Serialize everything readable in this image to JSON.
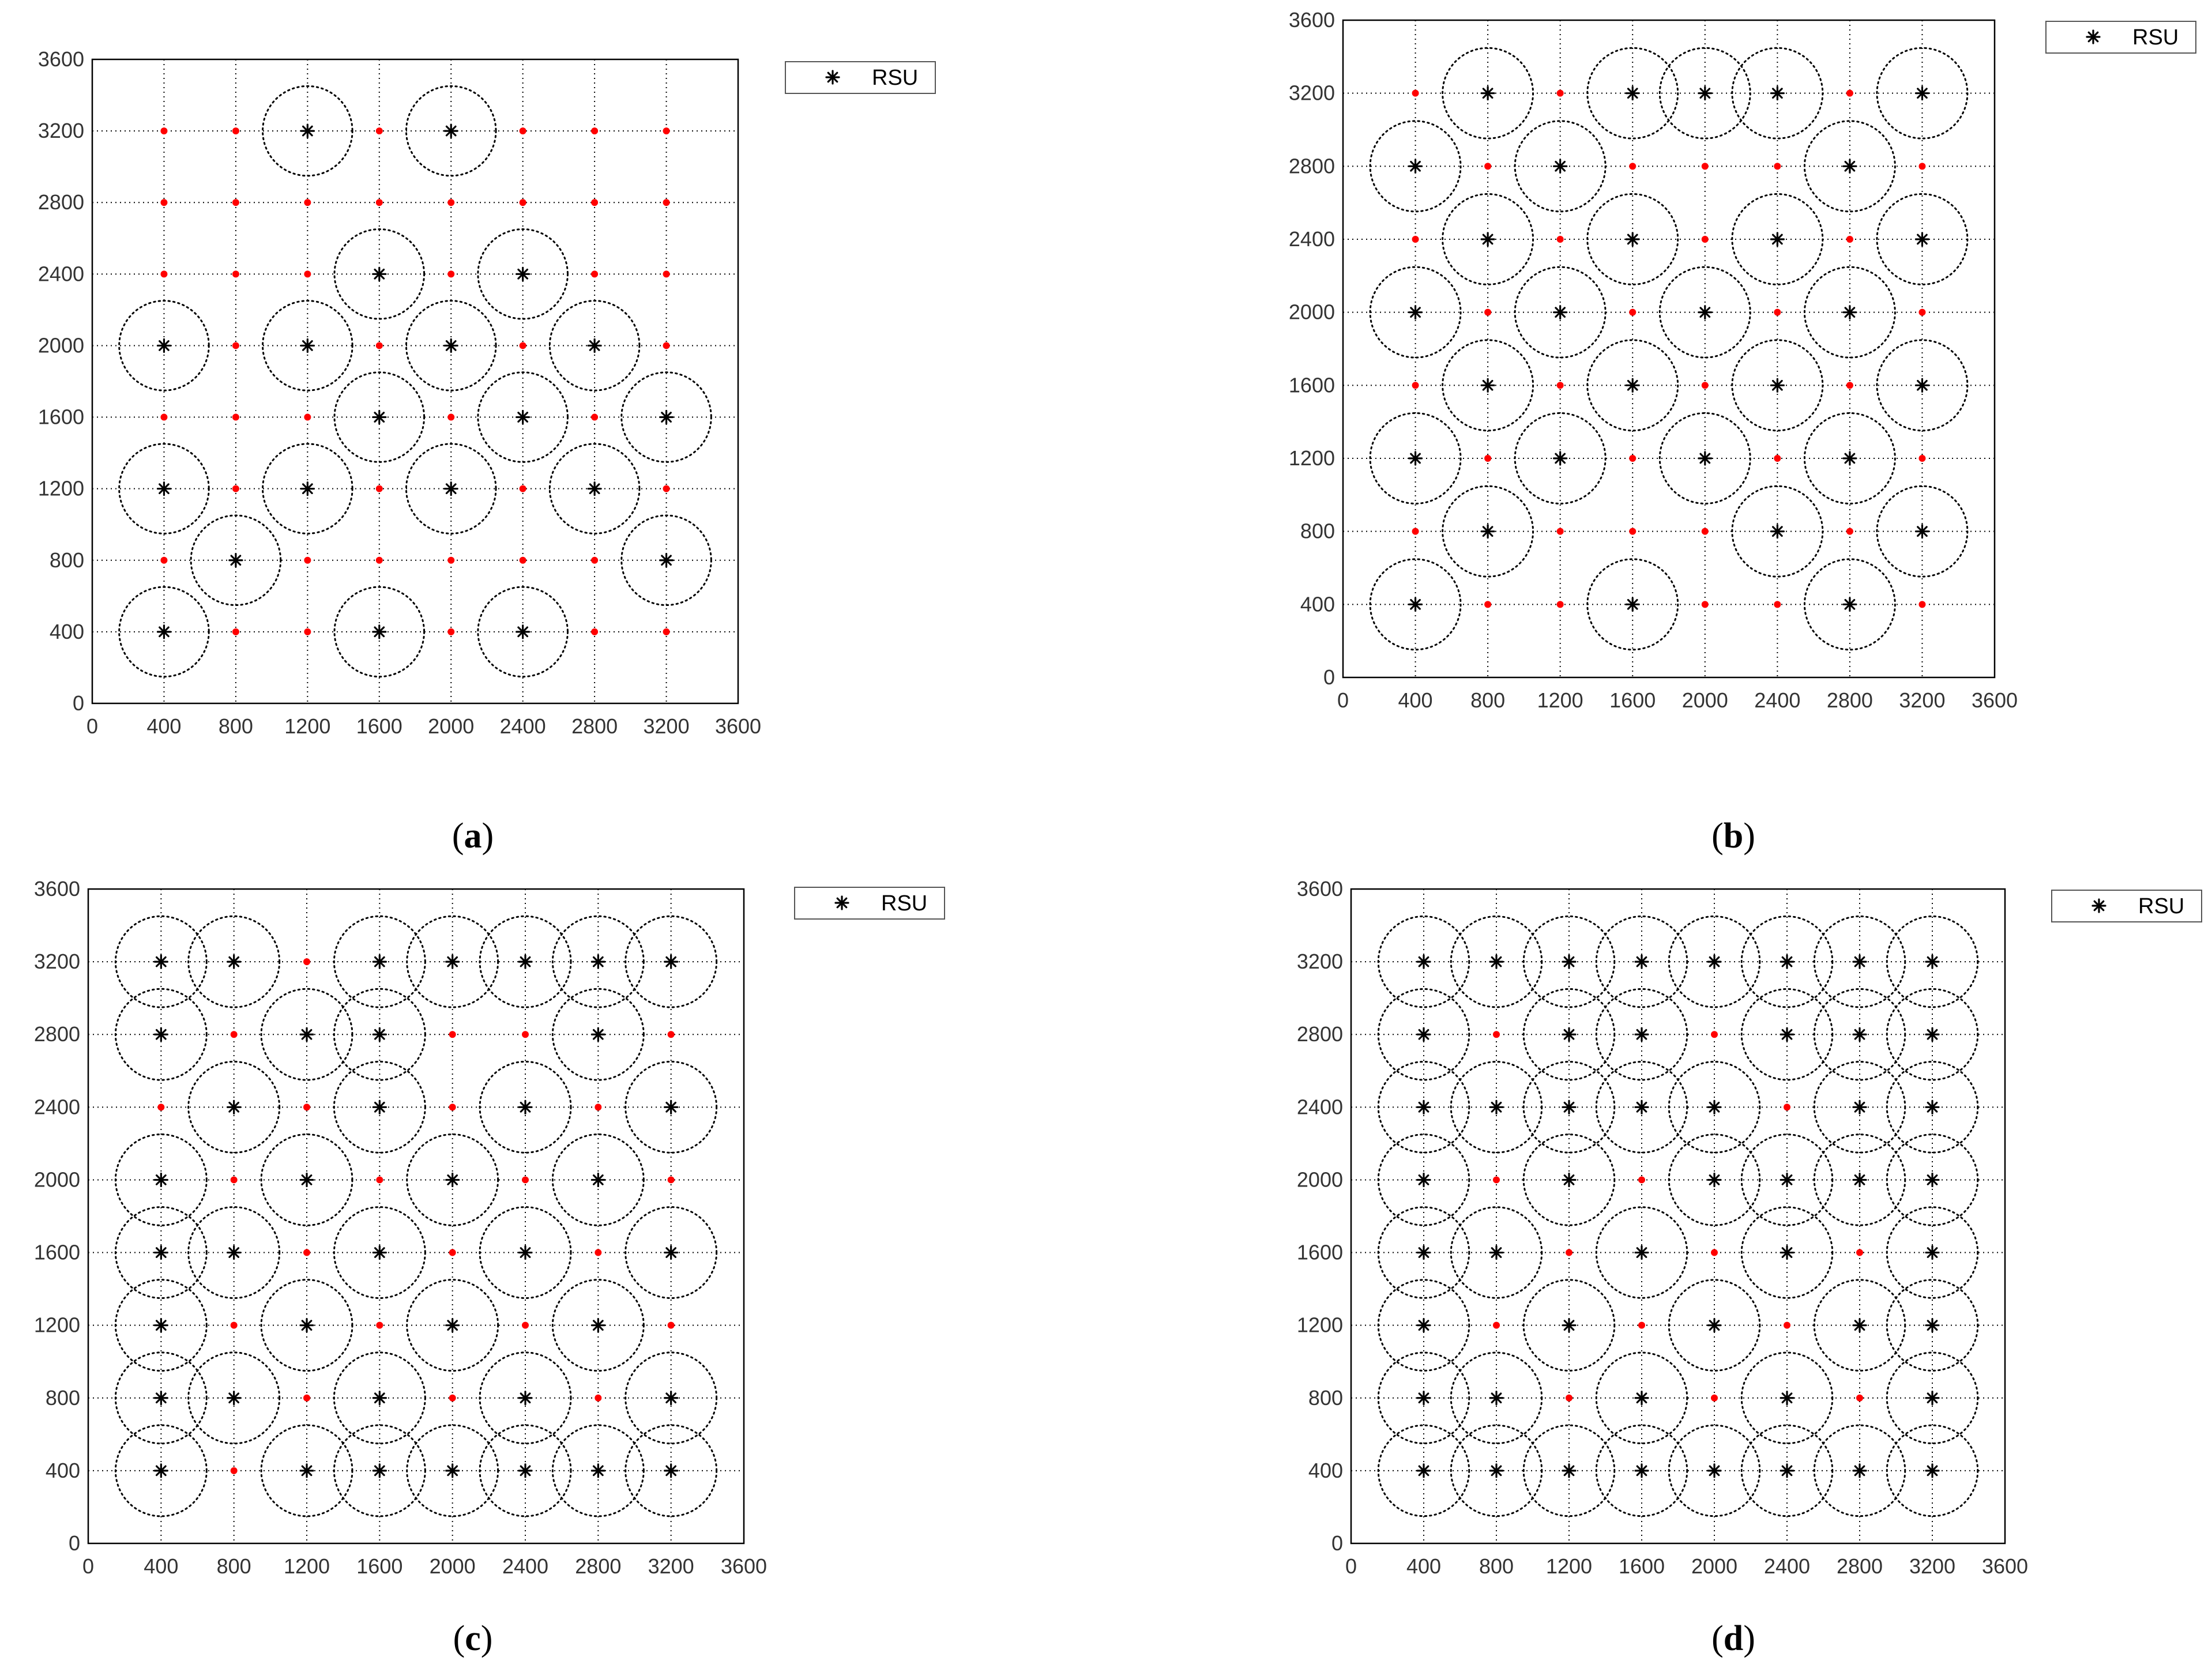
{
  "legend_label": "RSU",
  "colors": {
    "rsu": "#000000",
    "candidate": "#ff0000",
    "grid": "#000000",
    "frame": "#000000"
  },
  "chart_data": [
    {
      "type": "scatter",
      "panel_label": "(a)",
      "legend": "RSU",
      "xlim": [
        0,
        3600
      ],
      "ylim": [
        0,
        3600
      ],
      "xticks": [
        0,
        400,
        800,
        1200,
        1600,
        2000,
        2400,
        2800,
        3200,
        3600
      ],
      "yticks": [
        0,
        400,
        800,
        1200,
        1600,
        2000,
        2400,
        2800,
        3200,
        3600
      ],
      "grid": true,
      "coverage_radius": 250,
      "rsu_rows": {
        "400": [
          400,
          1600,
          2400
        ],
        "800": [
          800,
          3200
        ],
        "1200": [
          400,
          1200,
          2000,
          2800
        ],
        "1600": [
          1600,
          2400,
          3200
        ],
        "2000": [
          400,
          1200,
          2000,
          2800
        ],
        "2400": [
          1600,
          2400
        ],
        "2800": [],
        "3200": [
          1200,
          2000
        ]
      }
    },
    {
      "type": "scatter",
      "panel_label": "(b)",
      "legend": "RSU",
      "xlim": [
        0,
        3600
      ],
      "ylim": [
        0,
        3600
      ],
      "xticks": [
        0,
        400,
        800,
        1200,
        1600,
        2000,
        2400,
        2800,
        3200,
        3600
      ],
      "yticks": [
        0,
        400,
        800,
        1200,
        1600,
        2000,
        2400,
        2800,
        3200,
        3600
      ],
      "grid": true,
      "coverage_radius": 250,
      "rsu_rows": {
        "400": [
          400,
          1600,
          2800
        ],
        "800": [
          800,
          2400,
          3200
        ],
        "1200": [
          400,
          1200,
          2000,
          2800
        ],
        "1600": [
          800,
          1600,
          2400,
          3200
        ],
        "2000": [
          400,
          1200,
          2000,
          2800
        ],
        "2400": [
          800,
          1600,
          2400,
          3200
        ],
        "2800": [
          400,
          1200,
          2800
        ],
        "3200": [
          800,
          1600,
          2000,
          2400,
          3200
        ]
      }
    },
    {
      "type": "scatter",
      "panel_label": "(c)",
      "legend": "RSU",
      "xlim": [
        0,
        3600
      ],
      "ylim": [
        0,
        3600
      ],
      "xticks": [
        0,
        400,
        800,
        1200,
        1600,
        2000,
        2400,
        2800,
        3200,
        3600
      ],
      "yticks": [
        0,
        400,
        800,
        1200,
        1600,
        2000,
        2400,
        2800,
        3200,
        3600
      ],
      "grid": true,
      "coverage_radius": 250,
      "rsu_rows": {
        "400": [
          400,
          1200,
          1600,
          2000,
          2400,
          2800,
          3200
        ],
        "800": [
          400,
          800,
          1600,
          2400,
          3200
        ],
        "1200": [
          400,
          1200,
          2000,
          2800
        ],
        "1600": [
          400,
          800,
          1600,
          2400,
          3200
        ],
        "2000": [
          400,
          1200,
          2000,
          2800
        ],
        "2400": [
          800,
          1600,
          2400,
          3200
        ],
        "2800": [
          400,
          1200,
          1600,
          2800
        ],
        "3200": [
          400,
          800,
          1600,
          2000,
          2400,
          2800,
          3200
        ]
      }
    },
    {
      "type": "scatter",
      "panel_label": "(d)",
      "legend": "RSU",
      "xlim": [
        0,
        3600
      ],
      "ylim": [
        0,
        3600
      ],
      "xticks": [
        0,
        400,
        800,
        1200,
        1600,
        2000,
        2400,
        2800,
        3200,
        3600
      ],
      "yticks": [
        0,
        400,
        800,
        1200,
        1600,
        2000,
        2400,
        2800,
        3200,
        3600
      ],
      "grid": true,
      "coverage_radius": 250,
      "rsu_rows": {
        "400": [
          400,
          800,
          1200,
          1600,
          2000,
          2400,
          2800,
          3200
        ],
        "800": [
          400,
          800,
          1600,
          2400,
          3200
        ],
        "1200": [
          400,
          1200,
          2000,
          2800,
          3200
        ],
        "1600": [
          400,
          800,
          1600,
          2400,
          3200
        ],
        "2000": [
          400,
          1200,
          2000,
          2400,
          2800,
          3200
        ],
        "2400": [
          400,
          800,
          1200,
          1600,
          2000,
          2800,
          3200
        ],
        "2800": [
          400,
          1200,
          1600,
          2400,
          2800,
          3200
        ],
        "3200": [
          400,
          800,
          1200,
          1600,
          2000,
          2400,
          2800,
          3200
        ]
      }
    }
  ]
}
